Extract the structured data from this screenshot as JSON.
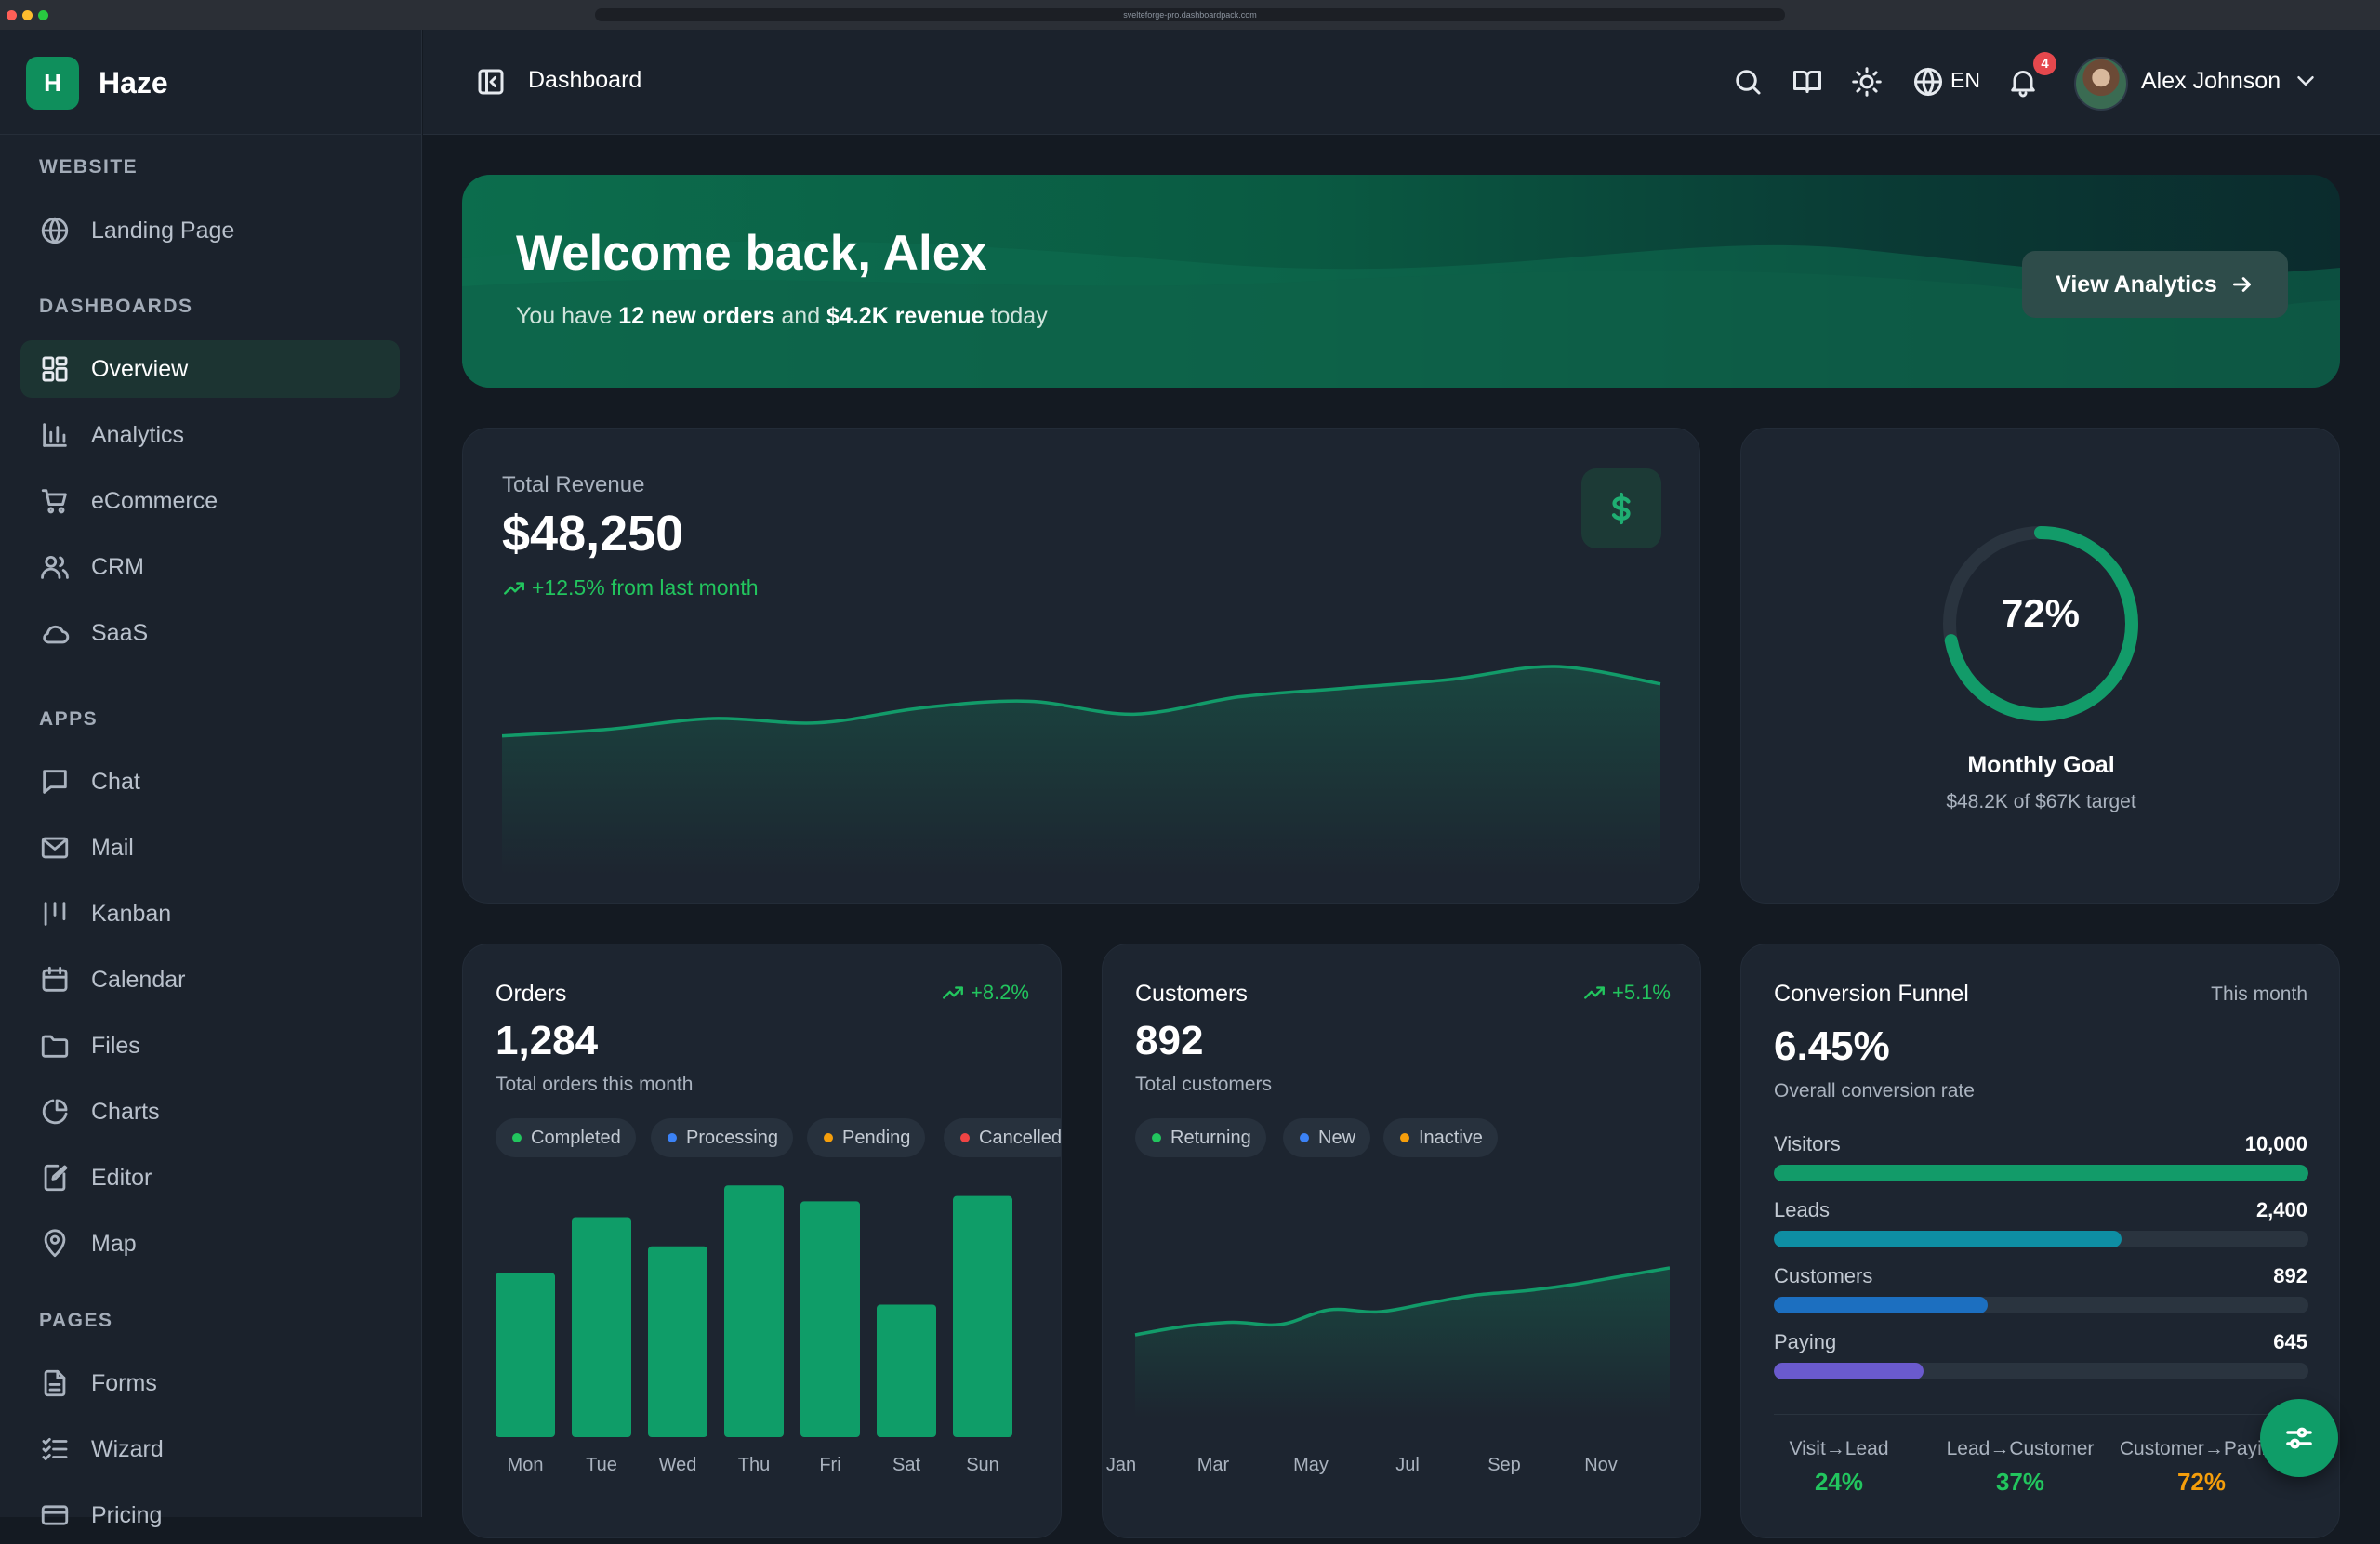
{
  "browser": {
    "url": "svelteforge-pro.dashboardpack.com"
  },
  "brand": {
    "logo_letter": "H",
    "name": "Haze"
  },
  "sidebar": {
    "sections": [
      {
        "title": "WEBSITE",
        "items": [
          {
            "label": "Landing Page",
            "icon": "globe-icon"
          }
        ]
      },
      {
        "title": "DASHBOARDS",
        "items": [
          {
            "label": "Overview",
            "icon": "grid-icon",
            "active": true
          },
          {
            "label": "Analytics",
            "icon": "bar-chart-icon"
          },
          {
            "label": "eCommerce",
            "icon": "cart-icon"
          },
          {
            "label": "CRM",
            "icon": "users-icon"
          },
          {
            "label": "SaaS",
            "icon": "cloud-icon"
          }
        ]
      },
      {
        "title": "APPS",
        "items": [
          {
            "label": "Chat",
            "icon": "chat-icon"
          },
          {
            "label": "Mail",
            "icon": "mail-icon"
          },
          {
            "label": "Kanban",
            "icon": "kanban-icon"
          },
          {
            "label": "Calendar",
            "icon": "calendar-icon"
          },
          {
            "label": "Files",
            "icon": "folder-icon"
          },
          {
            "label": "Charts",
            "icon": "pie-chart-icon"
          },
          {
            "label": "Editor",
            "icon": "edit-icon"
          },
          {
            "label": "Map",
            "icon": "map-pin-icon"
          }
        ]
      },
      {
        "title": "PAGES",
        "items": [
          {
            "label": "Forms",
            "icon": "form-icon"
          },
          {
            "label": "Wizard",
            "icon": "list-check-icon"
          },
          {
            "label": "Pricing",
            "icon": "credit-card-icon"
          }
        ]
      }
    ]
  },
  "header": {
    "title": "Dashboard",
    "language": "EN",
    "notification_count": "4",
    "user_name": "Alex Johnson"
  },
  "welcome": {
    "title": "Welcome back, Alex",
    "sub_prefix": "You have ",
    "orders_text": "12 new orders",
    "sub_mid": " and ",
    "revenue_text": "$4.2K revenue",
    "sub_suffix": " today",
    "button_label": "View Analytics"
  },
  "revenue": {
    "label": "Total Revenue",
    "value": "$48,250",
    "change": "+12.5% from last month"
  },
  "goal": {
    "percent_label": "72%",
    "percent": 72,
    "title": "Monthly Goal",
    "subtitle": "$48.2K of $67K target",
    "color": "#129b69"
  },
  "orders": {
    "title": "Orders",
    "change": "+8.2%",
    "value": "1,284",
    "subtitle": "Total orders this month",
    "legend": [
      {
        "label": "Completed",
        "color": "#22c55e"
      },
      {
        "label": "Processing",
        "color": "#3b82f6"
      },
      {
        "label": "Pending",
        "color": "#f59e0b"
      },
      {
        "label": "Cancelled",
        "color": "#ef4444"
      }
    ]
  },
  "customers": {
    "title": "Customers",
    "change": "+5.1%",
    "value": "892",
    "subtitle": "Total customers",
    "legend": [
      {
        "label": "Returning",
        "color": "#22c55e"
      },
      {
        "label": "New",
        "color": "#3b82f6"
      },
      {
        "label": "Inactive",
        "color": "#f59e0b"
      }
    ]
  },
  "funnel": {
    "title": "Conversion Funnel",
    "period": "This month",
    "value": "6.45%",
    "subtitle": "Overall conversion rate",
    "stages": [
      {
        "label": "Visitors",
        "value": "10,000",
        "fraction": 1.0,
        "color": "#129b69"
      },
      {
        "label": "Leads",
        "value": "2,400",
        "fraction": 0.65,
        "color": "#0e8ea3"
      },
      {
        "label": "Customers",
        "value": "892",
        "fraction": 0.4,
        "color": "#1c6fc0"
      },
      {
        "label": "Paying",
        "value": "645",
        "fraction": 0.28,
        "color": "#6a5acd"
      }
    ],
    "rates": [
      {
        "label": "Visit→Lead",
        "value": "24%",
        "color": "#22c55e"
      },
      {
        "label": "Lead→Customer",
        "value": "37%",
        "color": "#22c55e"
      },
      {
        "label": "Customer→Paying",
        "value": "72%",
        "color": "#f59e0b"
      }
    ]
  },
  "chart_data": [
    {
      "type": "area",
      "title": "Total Revenue",
      "x": [
        1,
        2,
        3,
        4,
        5,
        6,
        7,
        8,
        9,
        10,
        11,
        12
      ],
      "values": [
        32,
        33.5,
        36,
        35,
        38.5,
        40,
        37,
        41,
        43,
        45,
        48,
        44
      ],
      "ylim": [
        0,
        60
      ],
      "grid": false,
      "color": "#129b69"
    },
    {
      "type": "bar",
      "title": "Orders",
      "categories": [
        "Mon",
        "Tue",
        "Wed",
        "Thu",
        "Fri",
        "Sat",
        "Sun"
      ],
      "values": [
        62,
        83,
        72,
        95,
        89,
        50,
        91
      ],
      "ylim": [
        0,
        100
      ],
      "grid": false,
      "color": "#0f9d68"
    },
    {
      "type": "area",
      "title": "Customers",
      "categories": [
        "Jan",
        "Mar",
        "May",
        "Jul",
        "Sep",
        "Nov"
      ],
      "x": [
        1,
        2,
        3,
        4,
        5,
        6,
        7,
        8,
        9,
        10,
        11,
        12
      ],
      "values": [
        40,
        44,
        46,
        45,
        52,
        51,
        55,
        59,
        61,
        64,
        68,
        72
      ],
      "ylim": [
        0,
        100
      ],
      "grid": false,
      "color": "#129b69"
    }
  ]
}
